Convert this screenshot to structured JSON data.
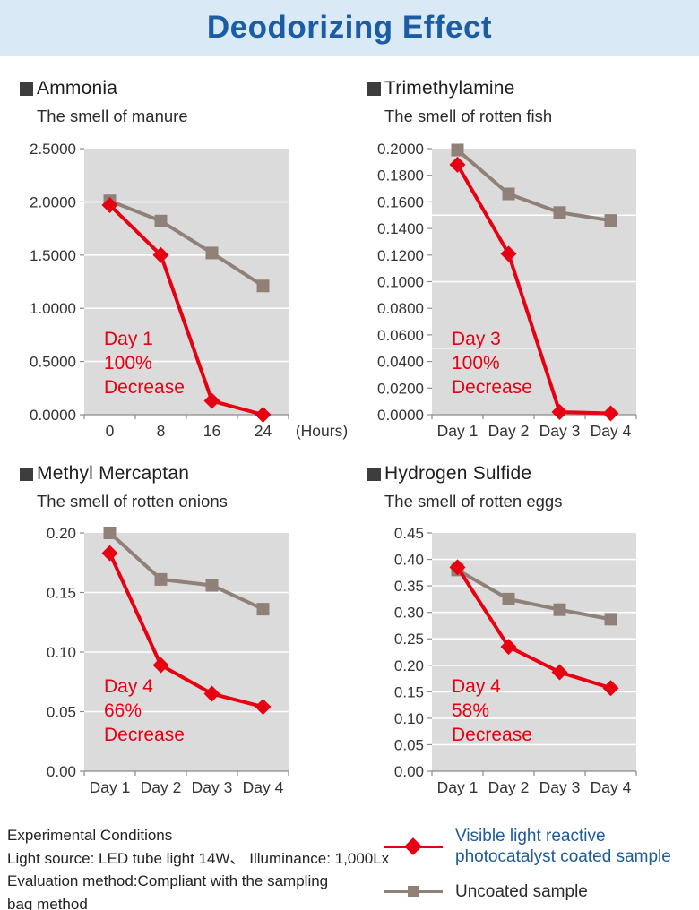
{
  "header": {
    "title": "Deodorizing Effect"
  },
  "colors": {
    "banner_bg": "#d9eaf6",
    "banner_text": "#1b5ca2",
    "red": "#e60012",
    "gray": "#8f8178",
    "plot_bg": "#dbdbdb",
    "legend_blue": "#1d5a9b",
    "text_dark": "#222222"
  },
  "chart_data": [
    {
      "id": "ammonia",
      "type": "line",
      "title": "Ammonia",
      "subtitle": "The smell of manure",
      "categories": [
        "0",
        "8",
        "16",
        "24"
      ],
      "x_axis_suffix": "(Hours)",
      "ylim": [
        0,
        2.5
      ],
      "y_ticks": [
        "2.5000",
        "2.0000",
        "1.5000",
        "1.0000",
        "0.5000",
        "0.0000"
      ],
      "gridlines": [
        2.0,
        1.5,
        1.0,
        0.5
      ],
      "legend_position": "bottom-right-of-page",
      "grid": true,
      "series": [
        {
          "name": "Uncoated sample",
          "marker": "square",
          "color": "#8f8178",
          "values": [
            2.01,
            1.82,
            1.52,
            1.21
          ]
        },
        {
          "name": "Visible light reactive photocatalyst coated sample",
          "marker": "diamond",
          "color": "#e60012",
          "values": [
            1.97,
            1.5,
            0.13,
            0.0
          ]
        }
      ],
      "annotation": [
        "Day 1",
        "100%",
        "Decrease"
      ]
    },
    {
      "id": "trimethylamine",
      "type": "line",
      "title": "Trimethylamine",
      "subtitle": "The smell of rotten fish",
      "categories": [
        "Day 1",
        "Day 2",
        "Day 3",
        "Day 4"
      ],
      "x_axis_suffix": "",
      "ylim": [
        0,
        0.2
      ],
      "y_ticks": [
        "0.2000",
        "0.1800",
        "0.1600",
        "0.1400",
        "0.1200",
        "0.1000",
        "0.0800",
        "0.0600",
        "0.0400",
        "0.0200",
        "0.0000"
      ],
      "gridlines": [
        0.15,
        0.1,
        0.05
      ],
      "grid": true,
      "series": [
        {
          "name": "Uncoated sample",
          "marker": "square",
          "color": "#8f8178",
          "values": [
            0.199,
            0.166,
            0.152,
            0.146
          ]
        },
        {
          "name": "Visible light reactive photocatalyst coated sample",
          "marker": "diamond",
          "color": "#e60012",
          "values": [
            0.188,
            0.121,
            0.002,
            0.001
          ]
        }
      ],
      "annotation": [
        "Day 3",
        "100%",
        "Decrease"
      ]
    },
    {
      "id": "methyl-mercaptan",
      "type": "line",
      "title": "Methyl Mercaptan",
      "subtitle": "The smell of rotten onions",
      "categories": [
        "Day 1",
        "Day 2",
        "Day 3",
        "Day 4"
      ],
      "x_axis_suffix": "",
      "ylim": [
        0,
        0.2
      ],
      "y_ticks": [
        "0.20",
        "0.15",
        "0.10",
        "0.05",
        "0.00"
      ],
      "gridlines": [
        0.15,
        0.1,
        0.05
      ],
      "grid": true,
      "series": [
        {
          "name": "Uncoated sample",
          "marker": "square",
          "color": "#8f8178",
          "values": [
            0.2,
            0.161,
            0.156,
            0.136
          ]
        },
        {
          "name": "Visible light reactive photocatalyst coated sample",
          "marker": "diamond",
          "color": "#e60012",
          "values": [
            0.183,
            0.089,
            0.065,
            0.054
          ]
        }
      ],
      "annotation": [
        "Day 4",
        "66%",
        "Decrease"
      ]
    },
    {
      "id": "hydrogen-sulfide",
      "type": "line",
      "title": "Hydrogen Sulfide",
      "subtitle": "The smell of rotten eggs",
      "categories": [
        "Day 1",
        "Day 2",
        "Day 3",
        "Day 4"
      ],
      "x_axis_suffix": "",
      "ylim": [
        0,
        0.45
      ],
      "y_ticks": [
        "0.45",
        "0.40",
        "0.35",
        "0.30",
        "0.25",
        "0.20",
        "0.15",
        "0.10",
        "0.05",
        "0.00"
      ],
      "gridlines": [
        0.4,
        0.35,
        0.3,
        0.25,
        0.2,
        0.15,
        0.1,
        0.05
      ],
      "grid": true,
      "series": [
        {
          "name": "Uncoated sample",
          "marker": "square",
          "color": "#8f8178",
          "values": [
            0.38,
            0.325,
            0.305,
            0.287
          ]
        },
        {
          "name": "Visible light reactive photocatalyst coated sample",
          "marker": "diamond",
          "color": "#e60012",
          "values": [
            0.385,
            0.235,
            0.187,
            0.157
          ]
        }
      ],
      "annotation": [
        "Day 4",
        "58%",
        "Decrease"
      ]
    }
  ],
  "legend": {
    "coated": {
      "label_line1": "Visible light reactive",
      "label_line2": "photocatalyst coated sample",
      "color": "#e60012",
      "text_color": "#1d5a9b",
      "marker": "diamond"
    },
    "uncoated": {
      "label": "Uncoated sample",
      "color": "#8f8178",
      "text_color": "#2b2b2b",
      "marker": "square"
    }
  },
  "conditions": {
    "lines": [
      "Experimental Conditions",
      "Light source: LED tube light 14W、 Illuminance: 1,000Lx",
      "Evaluation method:Compliant with the sampling",
      "bag method"
    ]
  }
}
